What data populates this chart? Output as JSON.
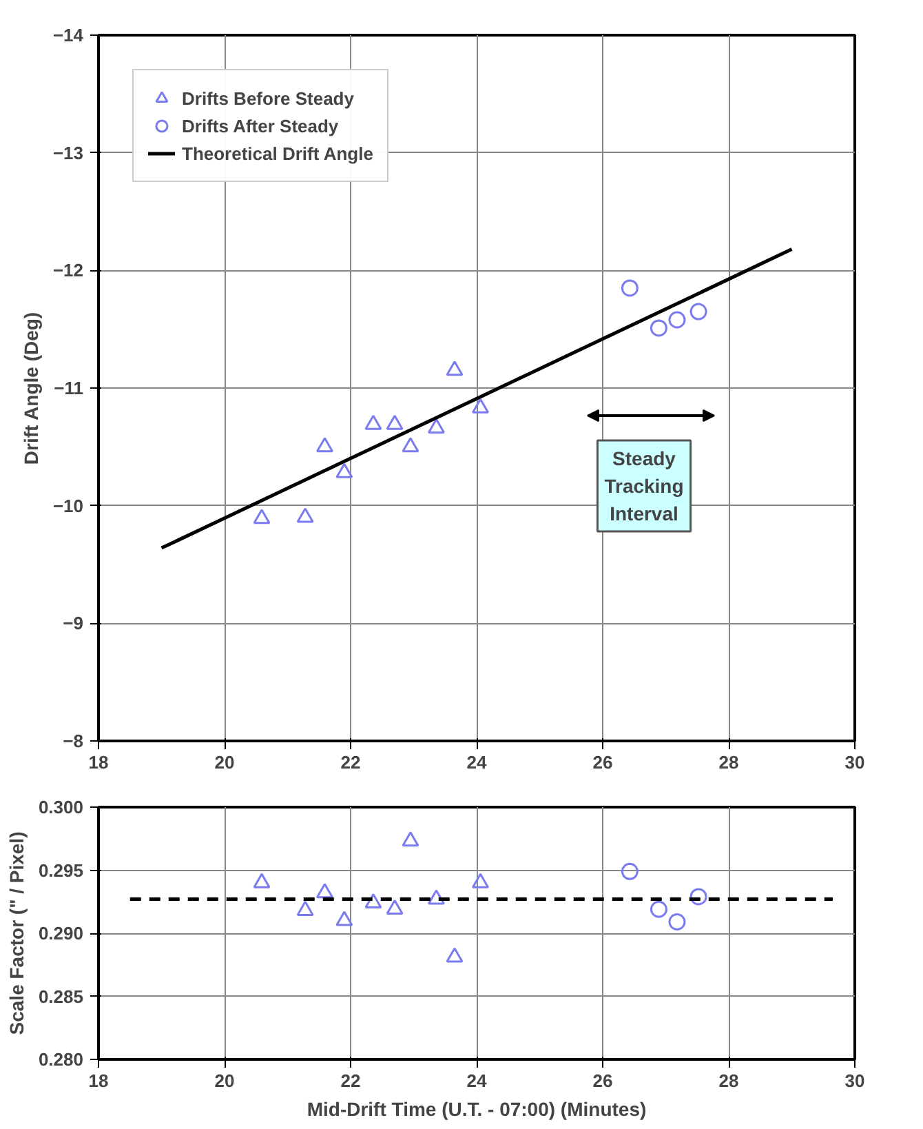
{
  "chart_data": [
    {
      "type": "scatter",
      "ylabel": "Drift Angle (Deg)",
      "xlim": [
        18,
        30
      ],
      "xticks": [
        18,
        20,
        22,
        24,
        26,
        28,
        30
      ],
      "ylim": [
        -8,
        -14
      ],
      "yticks": [
        -14,
        -13,
        -12,
        -11,
        -10,
        -9,
        -8
      ],
      "grid": true,
      "legend": "top left",
      "series": [
        {
          "name": "Drifts Before Steady",
          "marker": "triangle",
          "color": "#7b7bf0",
          "x": [
            20.59,
            21.28,
            21.59,
            21.9,
            22.36,
            22.7,
            22.95,
            23.36,
            23.65,
            24.06
          ],
          "values": [
            -9.89,
            -9.9,
            -10.5,
            -10.28,
            -10.69,
            -10.69,
            -10.5,
            -10.66,
            -11.15,
            -10.83
          ]
        },
        {
          "name": "Drifts After Steady",
          "marker": "circle",
          "color": "#7b7bf0",
          "x": [
            26.43,
            26.89,
            27.18,
            27.52
          ],
          "values": [
            -11.85,
            -11.51,
            -11.58,
            -11.65
          ]
        },
        {
          "name": "Theoretical Drift Angle",
          "type": "line",
          "line_style": "solid",
          "color": "#000000",
          "x": [
            19.0,
            29.0
          ],
          "values": [
            -9.64,
            -12.18
          ]
        }
      ],
      "annotations": [
        "Steady Tracking Interval"
      ]
    },
    {
      "type": "scatter",
      "xlabel": "Mid-Drift Time (U.T. - 07:00) (Minutes)",
      "ylabel": "Scale Factor (\" / Pixel)",
      "xlim": [
        18,
        30
      ],
      "xticks": [
        18,
        20,
        22,
        24,
        26,
        28,
        30
      ],
      "ylim": [
        0.28,
        0.3
      ],
      "yticks": [
        {
          "value": 0.28,
          "label": "0.280"
        },
        {
          "value": 0.285,
          "label": "0.285"
        },
        {
          "value": 0.29,
          "label": "0.290"
        },
        {
          "value": 0.295,
          "label": "0.295"
        },
        {
          "value": 0.3,
          "label": "0.300"
        }
      ],
      "grid": true,
      "series": [
        {
          "marker": "triangle",
          "color": "#7b7bf0",
          "x": [
            20.59,
            21.28,
            21.59,
            21.9,
            22.36,
            22.7,
            22.95,
            23.36,
            23.65,
            24.06
          ],
          "values": [
            0.294,
            0.2918,
            0.2932,
            0.291,
            0.2924,
            0.2919,
            0.2973,
            0.2927,
            0.2881,
            0.294
          ]
        },
        {
          "marker": "circle",
          "color": "#7b7bf0",
          "x": [
            26.43,
            26.89,
            27.18,
            27.52
          ],
          "values": [
            0.2949,
            0.2919,
            0.2909,
            0.2929
          ]
        },
        {
          "type": "line",
          "line_style": "dashed",
          "color": "#000000",
          "x": [
            18.5,
            29.65
          ],
          "values": [
            0.2927,
            0.2927
          ]
        }
      ]
    }
  ]
}
